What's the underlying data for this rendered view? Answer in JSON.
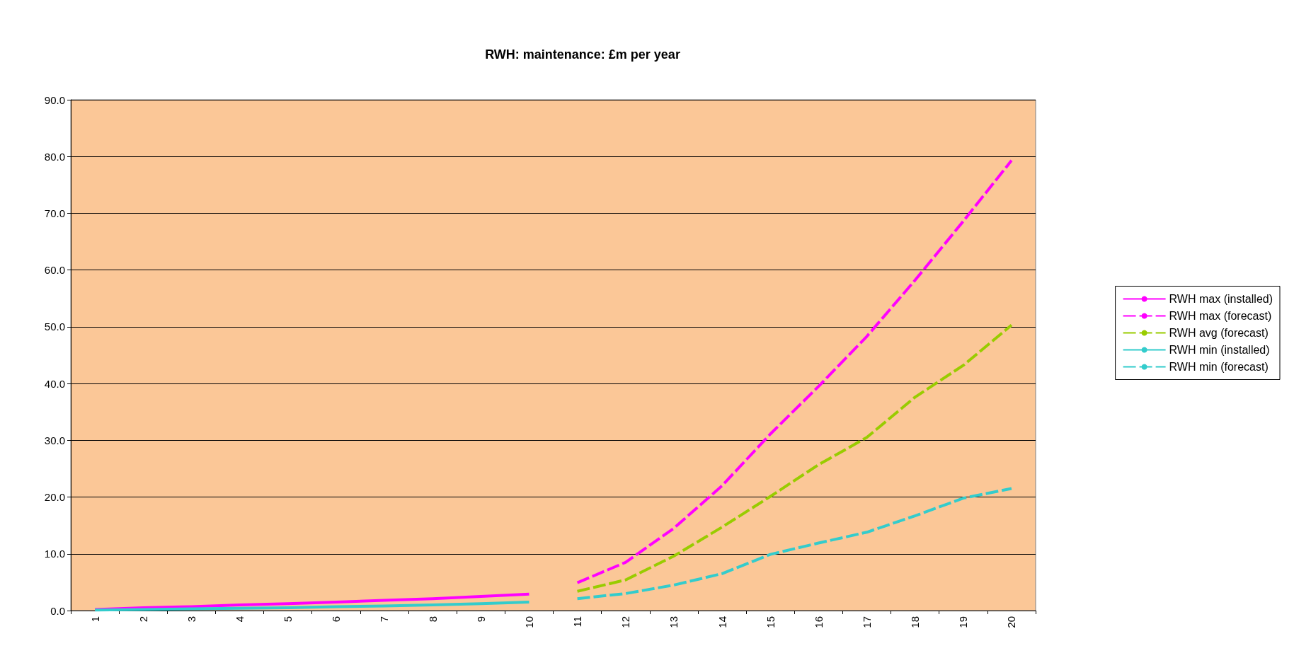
{
  "chart_data": {
    "type": "line",
    "title": "RWH: maintenance: £m per year",
    "categories": [
      "1",
      "2",
      "3",
      "4",
      "5",
      "6",
      "7",
      "8",
      "9",
      "10",
      "11",
      "12",
      "13",
      "14",
      "15",
      "16",
      "17",
      "18",
      "19",
      "20"
    ],
    "series": [
      {
        "name": "RWH max (installed)",
        "color": "#ff00ff",
        "line_style": "solid",
        "values": [
          0.2,
          0.5,
          0.7,
          1.0,
          1.2,
          1.5,
          1.8,
          2.1,
          2.5,
          2.9,
          null,
          null,
          null,
          null,
          null,
          null,
          null,
          null,
          null,
          null
        ]
      },
      {
        "name": "RWH max (forecast)",
        "color": "#ff00ff",
        "line_style": "dashed",
        "values": [
          null,
          null,
          null,
          null,
          null,
          null,
          null,
          null,
          null,
          null,
          4.9,
          8.5,
          14.5,
          22.0,
          31.1,
          39.5,
          48.3,
          58.2,
          68.6,
          79.3
        ]
      },
      {
        "name": "RWH avg (forecast)",
        "color": "#99cc00",
        "line_style": "dashed",
        "values": [
          null,
          null,
          null,
          null,
          null,
          null,
          null,
          null,
          null,
          null,
          3.4,
          5.4,
          9.6,
          14.7,
          20.1,
          25.7,
          30.5,
          37.6,
          43.2,
          50.3
        ]
      },
      {
        "name": "RWH min (installed)",
        "color": "#33cccc",
        "line_style": "solid",
        "values": [
          0.1,
          0.2,
          0.3,
          0.4,
          0.5,
          0.7,
          0.8,
          1.0,
          1.2,
          1.5,
          null,
          null,
          null,
          null,
          null,
          null,
          null,
          null,
          null,
          null
        ]
      },
      {
        "name": "RWH min (forecast)",
        "color": "#33cccc",
        "line_style": "dashed",
        "values": [
          null,
          null,
          null,
          null,
          null,
          null,
          null,
          null,
          null,
          null,
          2.1,
          3.0,
          4.5,
          6.5,
          9.9,
          11.9,
          13.8,
          16.7,
          19.8,
          21.5
        ]
      }
    ],
    "ylim": [
      0,
      90
    ],
    "yticks": [
      {
        "value": 0,
        "label": "0.0"
      },
      {
        "value": 10,
        "label": "10.0"
      },
      {
        "value": 20,
        "label": "20.0"
      },
      {
        "value": 30,
        "label": "30.0"
      },
      {
        "value": 40,
        "label": "40.0"
      },
      {
        "value": 50,
        "label": "50.0"
      },
      {
        "value": 60,
        "label": "60.0"
      },
      {
        "value": 70,
        "label": "70.0"
      },
      {
        "value": 80,
        "label": "80.0"
      },
      {
        "value": 90,
        "label": "90.0"
      }
    ],
    "grid": "y",
    "legend": "right",
    "marker": "none"
  }
}
